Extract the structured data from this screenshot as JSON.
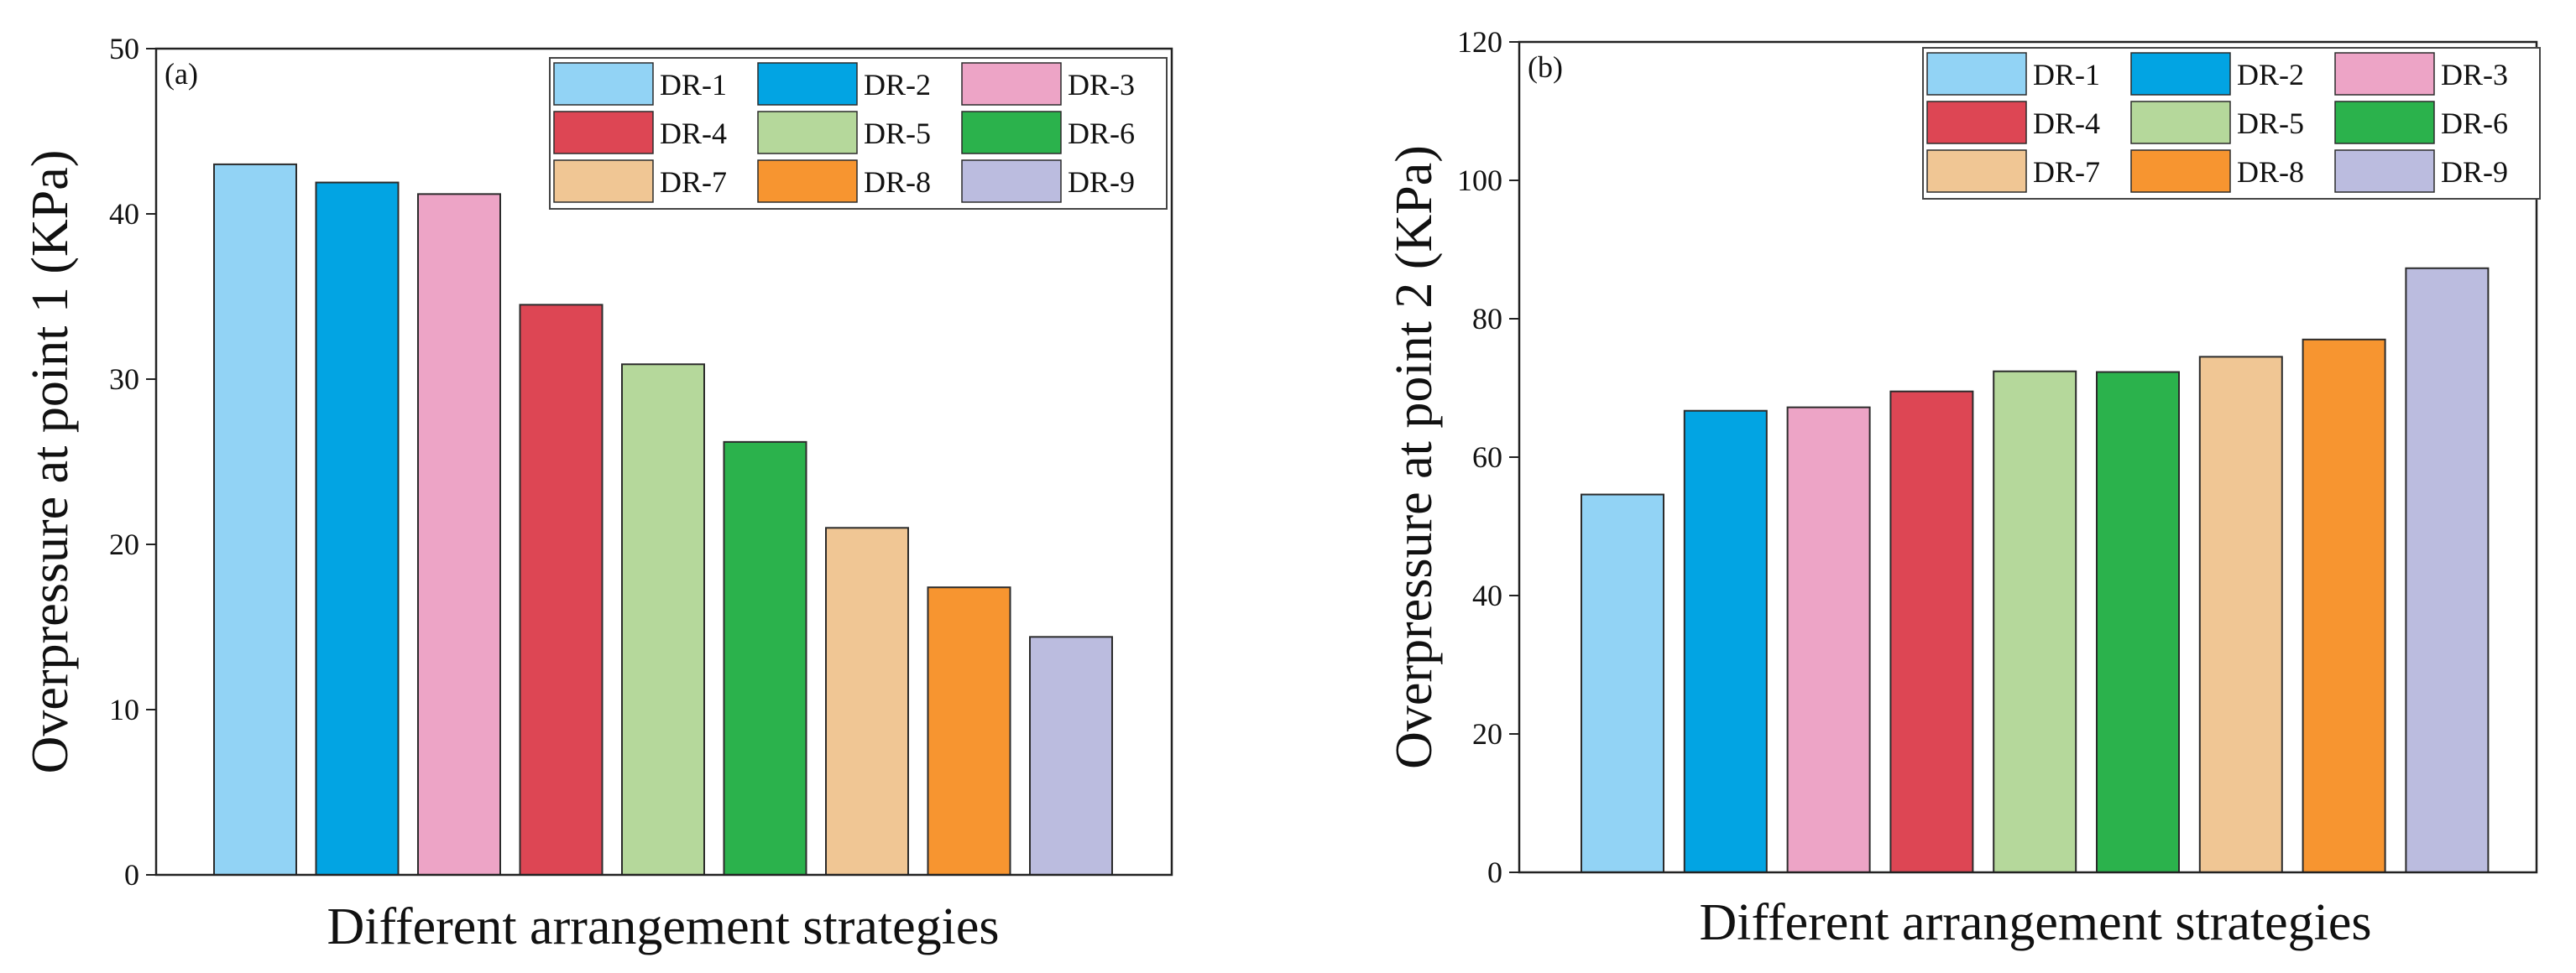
{
  "chart_data": [
    {
      "type": "bar",
      "panel_label": "(a)",
      "title": "",
      "xlabel": "Different arrangement strategies",
      "ylabel": "Overpressure at point 1 (KPa)",
      "ylim": [
        0,
        50
      ],
      "yticks": [
        0,
        10,
        20,
        30,
        40,
        50
      ],
      "ytick_labels": [
        "0",
        "10",
        "20",
        "30",
        "40",
        "50"
      ],
      "categories": [
        "DR-1",
        "DR-2",
        "DR-3",
        "DR-4",
        "DR-5",
        "DR-6",
        "DR-7",
        "DR-8",
        "DR-9"
      ],
      "values": [
        43.0,
        41.9,
        41.2,
        34.5,
        30.9,
        26.2,
        21.0,
        17.4,
        14.4
      ],
      "colors": [
        "#92D3F5",
        "#02A4E3",
        "#EDA4C6",
        "#DD4654",
        "#B5D89B",
        "#2BB24C",
        "#F0C694",
        "#F79530",
        "#BBBCDF"
      ],
      "legend_position": "top-right",
      "grid": false
    },
    {
      "type": "bar",
      "panel_label": "(b)",
      "title": "",
      "xlabel": "Different arrangement strategies",
      "ylabel": "Overpressure at point 2 (KPa)",
      "ylim": [
        0,
        120
      ],
      "yticks": [
        0,
        20,
        40,
        60,
        80,
        100,
        120
      ],
      "ytick_labels": [
        "0",
        "20",
        "40",
        "60",
        "80",
        "100",
        "120"
      ],
      "categories": [
        "DR-1",
        "DR-2",
        "DR-3",
        "DR-4",
        "DR-5",
        "DR-6",
        "DR-7",
        "DR-8",
        "DR-9"
      ],
      "values": [
        54.6,
        66.7,
        67.2,
        69.5,
        72.4,
        72.3,
        74.5,
        77.0,
        87.3
      ],
      "colors": [
        "#92D3F5",
        "#02A4E3",
        "#EDA4C6",
        "#DD4654",
        "#B5D89B",
        "#2BB24C",
        "#F0C694",
        "#F79530",
        "#BBBCDF"
      ],
      "legend_position": "top-right",
      "grid": false
    }
  ]
}
